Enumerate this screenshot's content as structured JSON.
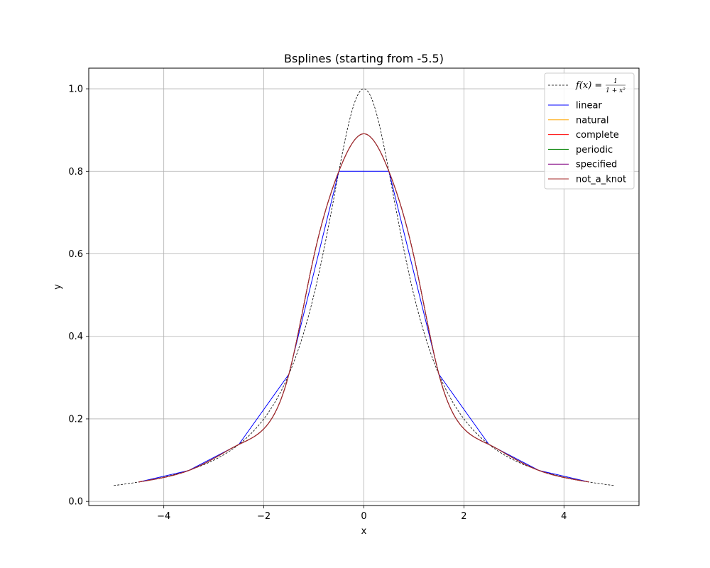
{
  "chart_data": {
    "type": "line",
    "title": "Bsplines (starting from -5.5)",
    "xlabel": "x",
    "ylabel": "y",
    "xlim": [
      -5.5,
      5.5
    ],
    "ylim": [
      -0.01,
      1.05
    ],
    "xticks": [
      -4,
      -2,
      0,
      2,
      4
    ],
    "xtick_labels": [
      "−4",
      "−2",
      "0",
      "2",
      "4"
    ],
    "yticks": [
      0.0,
      0.2,
      0.4,
      0.6,
      0.8,
      1.0
    ],
    "ytick_labels": [
      "0.0",
      "0.2",
      "0.4",
      "0.6",
      "0.8",
      "1.0"
    ],
    "grid": true,
    "legend_position": "top-right",
    "function": {
      "name": "f(x) = 1/(1+x^2)",
      "label_parts": {
        "lhs": "f(x) =",
        "numerator": "1",
        "denominator": "1 + x²"
      },
      "color": "#000000",
      "dash": "dashed",
      "x_range": [
        -5,
        5
      ]
    },
    "series": [
      {
        "name": "linear",
        "color": "#0000ff",
        "x": [
          -4.5,
          -3.5,
          -2.5,
          -1.5,
          -0.5,
          0.5,
          1.5,
          2.5,
          3.5,
          4.5
        ],
        "y": [
          0.047,
          0.075,
          0.138,
          0.308,
          0.8,
          0.8,
          0.308,
          0.138,
          0.075,
          0.047
        ]
      },
      {
        "name": "natural",
        "color": "#ffa500",
        "x": [
          -4.5,
          -4.0,
          -3.5,
          -3.0,
          -2.5,
          -2.0,
          -1.5,
          -1.0,
          -0.5,
          0.0,
          0.5,
          1.0,
          1.5,
          2.0,
          2.5,
          3.0,
          3.5,
          4.0,
          4.5
        ],
        "y": [
          0.047,
          0.058,
          0.075,
          0.104,
          0.138,
          0.176,
          0.308,
          0.594,
          0.8,
          0.891,
          0.8,
          0.594,
          0.308,
          0.176,
          0.138,
          0.104,
          0.075,
          0.058,
          0.047
        ]
      },
      {
        "name": "complete",
        "color": "#ff0000",
        "x": [
          -4.5,
          -4.0,
          -3.5,
          -3.0,
          -2.5,
          -2.0,
          -1.5,
          -1.0,
          -0.5,
          0.0,
          0.5,
          1.0,
          1.5,
          2.0,
          2.5,
          3.0,
          3.5,
          4.0,
          4.5
        ],
        "y": [
          0.047,
          0.058,
          0.075,
          0.104,
          0.138,
          0.176,
          0.308,
          0.594,
          0.8,
          0.891,
          0.8,
          0.594,
          0.308,
          0.176,
          0.138,
          0.104,
          0.075,
          0.058,
          0.047
        ]
      },
      {
        "name": "periodic",
        "color": "#008000",
        "x": [
          -4.5,
          -4.0,
          -3.5,
          -3.0,
          -2.5,
          -2.0,
          -1.5,
          -1.0,
          -0.5,
          0.0,
          0.5,
          1.0,
          1.5,
          2.0,
          2.5,
          3.0,
          3.5,
          4.0,
          4.5
        ],
        "y": [
          0.047,
          0.058,
          0.075,
          0.104,
          0.138,
          0.176,
          0.308,
          0.594,
          0.8,
          0.891,
          0.8,
          0.594,
          0.308,
          0.176,
          0.138,
          0.104,
          0.075,
          0.058,
          0.047
        ]
      },
      {
        "name": "specified",
        "color": "#800080",
        "x": [
          -4.5,
          -4.0,
          -3.5,
          -3.0,
          -2.5,
          -2.0,
          -1.5,
          -1.0,
          -0.5,
          0.0,
          0.5,
          1.0,
          1.5,
          2.0,
          2.5,
          3.0,
          3.5,
          4.0,
          4.5
        ],
        "y": [
          0.047,
          0.058,
          0.075,
          0.104,
          0.138,
          0.176,
          0.308,
          0.594,
          0.8,
          0.891,
          0.8,
          0.594,
          0.308,
          0.176,
          0.138,
          0.104,
          0.075,
          0.058,
          0.047
        ]
      },
      {
        "name": "not_a_knot",
        "color": "#a52a2a",
        "x": [
          -4.5,
          -4.0,
          -3.5,
          -3.0,
          -2.5,
          -2.0,
          -1.5,
          -1.0,
          -0.5,
          0.0,
          0.5,
          1.0,
          1.5,
          2.0,
          2.5,
          3.0,
          3.5,
          4.0,
          4.5
        ],
        "y": [
          0.047,
          0.058,
          0.075,
          0.104,
          0.138,
          0.176,
          0.308,
          0.594,
          0.8,
          0.891,
          0.8,
          0.594,
          0.308,
          0.176,
          0.138,
          0.104,
          0.075,
          0.058,
          0.047
        ]
      }
    ]
  }
}
